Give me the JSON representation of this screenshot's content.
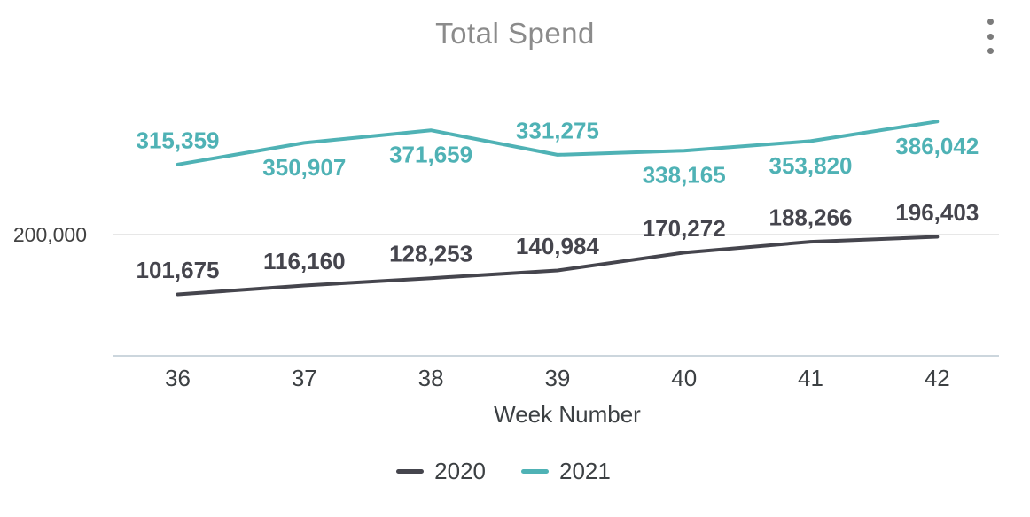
{
  "title": "Total Spend",
  "menu": {
    "icon": "kebab-vertical-menu"
  },
  "chart_data": {
    "type": "line",
    "title": "Total Spend",
    "xlabel": "Week Number",
    "ylabel": "",
    "categories": [
      "36",
      "37",
      "38",
      "39",
      "40",
      "41",
      "42"
    ],
    "series": [
      {
        "name": "2020",
        "color": "#45454d",
        "values": [
          101675,
          116160,
          128253,
          140984,
          170272,
          188266,
          196403
        ],
        "labels": [
          "101,675",
          "116,160",
          "128,253",
          "140,984",
          "170,272",
          "188,266",
          "196,403"
        ],
        "label_side": [
          "above",
          "above",
          "above",
          "above",
          "above",
          "above",
          "above"
        ]
      },
      {
        "name": "2021",
        "color": "#4fb2b5",
        "values": [
          315359,
          350907,
          371659,
          331275,
          338165,
          353820,
          386042
        ],
        "labels": [
          "315,359",
          "350,907",
          "371,659",
          "331,275",
          "338,165",
          "353,820",
          "386,042"
        ],
        "label_side": [
          "above",
          "below",
          "below",
          "above",
          "below",
          "below",
          "below"
        ]
      }
    ],
    "y_axis": {
      "tick_label": "200,000",
      "tick_value": 200000
    },
    "legend": {
      "position": "bottom",
      "entries": [
        "2020",
        "2021"
      ]
    },
    "grid": {
      "horizontal_lines": [
        200000
      ]
    }
  }
}
